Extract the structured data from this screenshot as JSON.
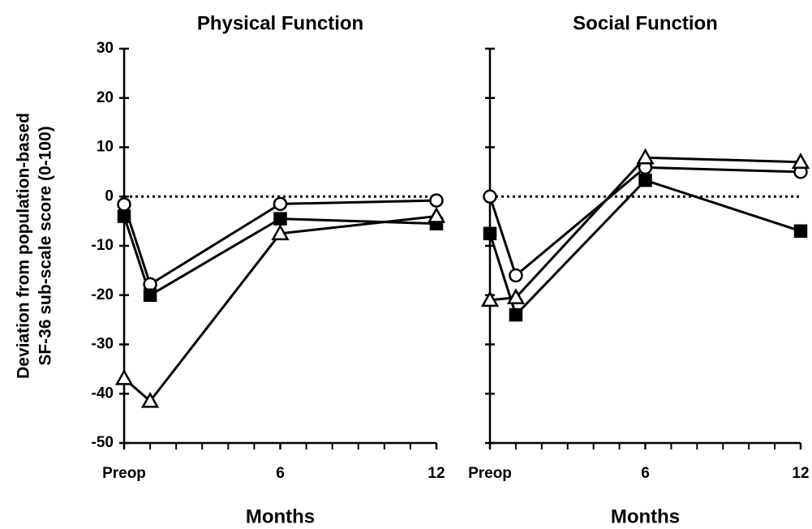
{
  "chart_data": [
    {
      "type": "line",
      "title": "Physical Function",
      "xlabel": "Months",
      "ylabel": [
        "Deviation from population-based",
        "SF-36 sub-scale score (0-100)"
      ],
      "x": [
        0,
        1,
        6,
        12
      ],
      "series": [
        {
          "color": "#000000",
          "marker": "circle-open",
          "values": [
            -1.6,
            -17.8,
            -1.5,
            -0.8
          ]
        },
        {
          "color": "#000000",
          "marker": "square-filled",
          "values": [
            -4,
            -20,
            -4.5,
            -5.5
          ]
        },
        {
          "color": "#000000",
          "marker": "triangle-open",
          "values": [
            -36.9,
            -41.5,
            -7.5,
            -4
          ]
        }
      ],
      "xlim": [
        0,
        12
      ],
      "xticks": [
        {
          "value": 0,
          "label": "Preop"
        },
        6,
        12
      ],
      "xminorticks": [
        1,
        2,
        3,
        4,
        5,
        7,
        8,
        9,
        10,
        11
      ],
      "ylim": [
        -50,
        30
      ],
      "yticks": [
        -50,
        -40,
        -30,
        -20,
        -10,
        0,
        10,
        20,
        30
      ],
      "show_ytick_labels": true,
      "reference_line": 0
    },
    {
      "type": "line",
      "title": "Social Function",
      "xlabel": "Months",
      "x": [
        0,
        1,
        6,
        12
      ],
      "series": [
        {
          "color": "#000000",
          "marker": "circle-open",
          "values": [
            0,
            -16,
            5.9,
            5
          ]
        },
        {
          "color": "#000000",
          "marker": "square-filled",
          "values": [
            -7.5,
            -24,
            3.3,
            -7
          ]
        },
        {
          "color": "#000000",
          "marker": "triangle-open",
          "values": [
            -21,
            -20.5,
            7.9,
            7
          ]
        }
      ],
      "xlim": [
        0,
        12
      ],
      "xticks": [
        {
          "value": 0,
          "label": "Preop"
        },
        6,
        12
      ],
      "xminorticks": [
        1,
        2,
        3,
        4,
        5,
        7,
        8,
        9,
        10,
        11
      ],
      "ylim": [
        -50,
        30
      ],
      "yticks": [
        -50,
        -40,
        -30,
        -20,
        -10,
        0,
        10,
        20,
        30
      ],
      "show_ytick_labels": false,
      "reference_line": 0
    }
  ]
}
